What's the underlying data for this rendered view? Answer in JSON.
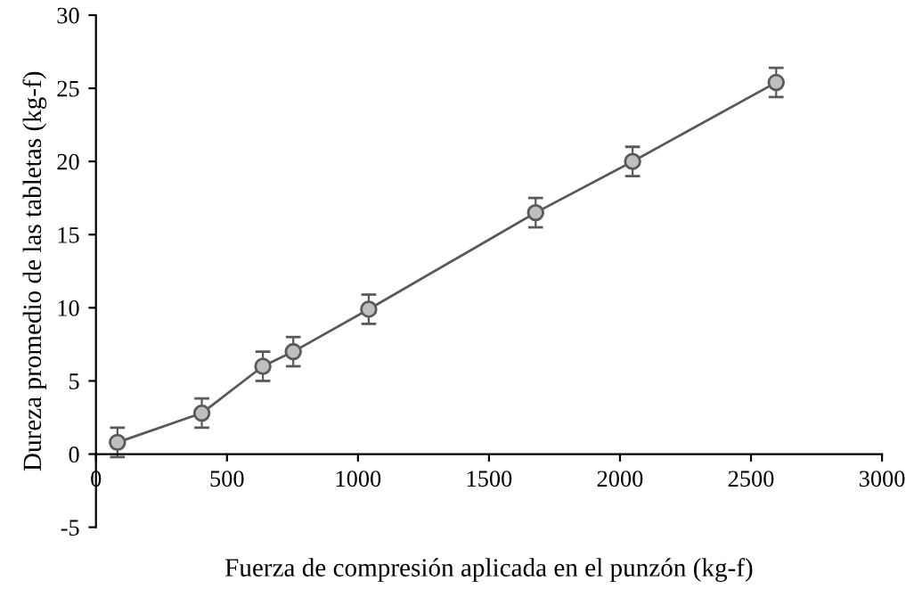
{
  "chart_data": {
    "type": "line",
    "xlabel": "Fuerza de compresión aplicada en el punzón (kg-f)",
    "ylabel": "Dureza promedio de las tabletas (kg-f)",
    "x": [
      82,
      404,
      637,
      753,
      1041,
      1678,
      2048,
      2596
    ],
    "series": [
      {
        "color": "#595959",
        "values": [
          0.8,
          2.8,
          6.0,
          7.0,
          9.9,
          16.5,
          20.0,
          25.4
        ],
        "errors": [
          1,
          1,
          1,
          1,
          1,
          1,
          1,
          1
        ]
      }
    ],
    "marker": "circle",
    "line_style": "solid",
    "xlim": [
      0,
      3000
    ],
    "xticks": [
      0,
      500,
      1000,
      1500,
      2000,
      2500,
      3000
    ],
    "ylim": [
      -5,
      30
    ],
    "yticks": [
      -5,
      0,
      5,
      10,
      15,
      20,
      25,
      30
    ],
    "grid": false,
    "legend": false
  }
}
